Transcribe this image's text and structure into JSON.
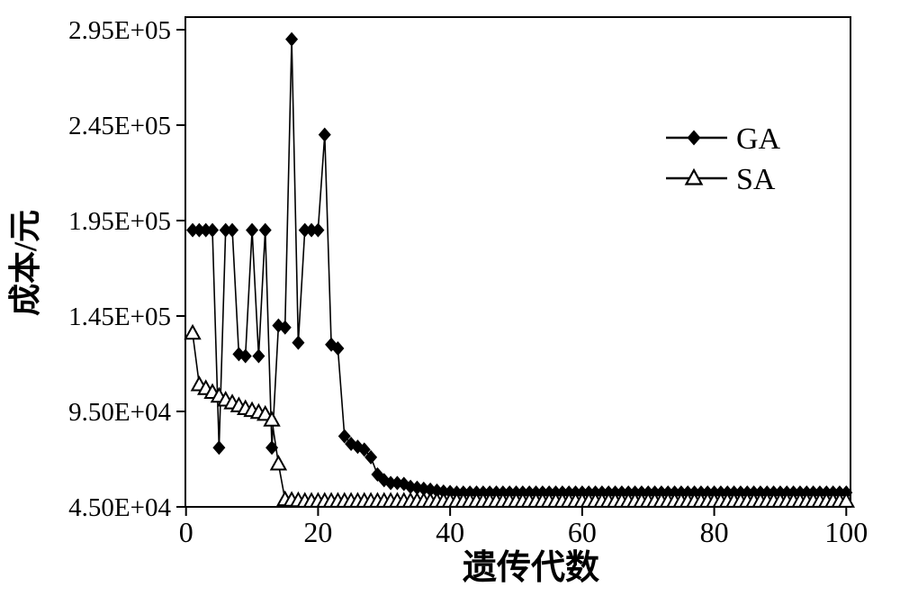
{
  "figure": {
    "background": "#ffffff",
    "frame_color": "#000000",
    "series_color": "#000000"
  },
  "chart_data": {
    "type": "line",
    "title": "",
    "xlabel": "遗传代数",
    "ylabel": "成本/元",
    "xlim": [
      0,
      100
    ],
    "ylim": [
      45000,
      295000
    ],
    "grid": "off",
    "legend_position": "inside-upper-right",
    "x_ticks": [
      0,
      20,
      40,
      60,
      80,
      100
    ],
    "y_ticks": [
      {
        "value": 295000,
        "label": "2.95E+05"
      },
      {
        "value": 245000,
        "label": "2.45E+05"
      },
      {
        "value": 195000,
        "label": "1.95E+05"
      },
      {
        "value": 145000,
        "label": "1.45E+05"
      },
      {
        "value": 95000,
        "label": "9.50E+04"
      },
      {
        "value": 45000,
        "label": "4.50E+04"
      }
    ],
    "x_start": 1,
    "x_step": 1,
    "series": [
      {
        "name": "GA",
        "marker": "filled-diamond",
        "color": "#000000",
        "values": [
          190000,
          190000,
          190000,
          190000,
          76000,
          190000,
          190000,
          125000,
          124000,
          190000,
          124000,
          190000,
          76000,
          140000,
          139000,
          290000,
          131000,
          190000,
          190000,
          190000,
          240000,
          130000,
          128000,
          82000,
          78000,
          76500,
          75000,
          71000,
          62000,
          59000,
          57500,
          57500,
          57000,
          55500,
          55000,
          54500,
          54000,
          53500,
          53000,
          52800,
          52500,
          52500,
          52500,
          52500,
          52500,
          52500,
          52500,
          52500,
          52500,
          52500,
          52500,
          52500,
          52500,
          52500,
          52500,
          52500,
          52500,
          52500,
          52500,
          52500,
          52500,
          52500,
          52500,
          52500,
          52500,
          52500,
          52500,
          52500,
          52500,
          52500,
          52500,
          52500,
          52500,
          52500,
          52500,
          52500,
          52500,
          52500,
          52500,
          52500,
          52500,
          52500,
          52500,
          52500,
          52500,
          52500,
          52500,
          52500,
          52500,
          52500,
          52500,
          52500,
          52500,
          52500,
          52500,
          52500,
          52500,
          52500,
          52500,
          52500
        ]
      },
      {
        "name": "SA",
        "marker": "open-triangle",
        "color": "#000000",
        "values": [
          136000,
          109000,
          107000,
          105000,
          103000,
          101000,
          99500,
          98000,
          96500,
          95500,
          94500,
          93500,
          90500,
          67500,
          48800,
          48500,
          48300,
          48000,
          48000,
          48000,
          48000,
          48000,
          48000,
          48000,
          48000,
          48000,
          48000,
          48000,
          48000,
          48000,
          48000,
          48000,
          48000,
          48000,
          48000,
          48000,
          48000,
          48000,
          48000,
          48000,
          48000,
          48000,
          48000,
          48000,
          48000,
          48000,
          48000,
          48000,
          48000,
          48000,
          48000,
          48000,
          48000,
          48000,
          48000,
          48000,
          48000,
          48000,
          48000,
          48000,
          48000,
          48000,
          48000,
          48000,
          48000,
          48000,
          48000,
          48000,
          48000,
          48000,
          48000,
          48000,
          48000,
          48000,
          48000,
          48000,
          48000,
          48000,
          48000,
          48000,
          48000,
          48000,
          48000,
          48000,
          48000,
          48000,
          48000,
          48000,
          48000,
          48000,
          48000,
          48000,
          48000,
          48000,
          48000,
          48000,
          48000,
          48000,
          48000,
          48000
        ]
      }
    ]
  }
}
